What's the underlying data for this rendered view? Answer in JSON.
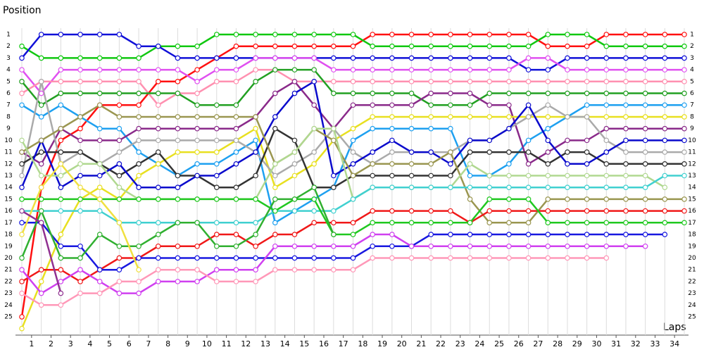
{
  "chart_data": {
    "type": "line",
    "title": "Position",
    "x_label": "Laps",
    "x": [
      0,
      1,
      2,
      3,
      4,
      5,
      6,
      7,
      8,
      9,
      10,
      11,
      12,
      13,
      14,
      15,
      16,
      17,
      18,
      19,
      20,
      21,
      22,
      23,
      24,
      25,
      26,
      27,
      28,
      29,
      30,
      31,
      32,
      33,
      34
    ],
    "xlim": [
      0,
      34
    ],
    "xticks": [
      {
        "value": 0.5,
        "label": "1"
      },
      {
        "value": 1.5,
        "label": "2"
      },
      {
        "value": 2.5,
        "label": "3"
      },
      {
        "value": 3.5,
        "label": "4"
      },
      {
        "value": 4.5,
        "label": "5"
      },
      {
        "value": 5.5,
        "label": "6"
      },
      {
        "value": 6.5,
        "label": "7"
      },
      {
        "value": 7.5,
        "label": "8"
      },
      {
        "value": 8.5,
        "label": "9"
      },
      {
        "value": 9.5,
        "label": "10"
      },
      {
        "value": 10.5,
        "label": "11"
      },
      {
        "value": 11.5,
        "label": "12"
      },
      {
        "value": 12.5,
        "label": "13"
      },
      {
        "value": 13.5,
        "label": "14"
      },
      {
        "value": 14.5,
        "label": "15"
      },
      {
        "value": 15.5,
        "label": "16"
      },
      {
        "value": 16.5,
        "label": "17"
      },
      {
        "value": 17.5,
        "label": "18"
      },
      {
        "value": 18.5,
        "label": "19"
      },
      {
        "value": 19.5,
        "label": "20"
      },
      {
        "value": 20.5,
        "label": "21"
      },
      {
        "value": 21.5,
        "label": "22"
      },
      {
        "value": 22.5,
        "label": "23"
      },
      {
        "value": 23.5,
        "label": "24"
      },
      {
        "value": 24.5,
        "label": "25"
      },
      {
        "value": 25.5,
        "label": "26"
      },
      {
        "value": 26.5,
        "label": "27"
      },
      {
        "value": 27.5,
        "label": "28"
      },
      {
        "value": 28.5,
        "label": "29"
      },
      {
        "value": 29.5,
        "label": "30"
      },
      {
        "value": 30.5,
        "label": "31"
      },
      {
        "value": 31.5,
        "label": "32"
      },
      {
        "value": 32.5,
        "label": "33"
      },
      {
        "value": 33.5,
        "label": "34"
      }
    ],
    "ylim": [
      26,
      0.5
    ],
    "yticks": [
      1,
      2,
      3,
      4,
      5,
      6,
      7,
      8,
      9,
      10,
      11,
      12,
      13,
      14,
      15,
      16,
      17,
      18,
      19,
      20,
      21,
      22,
      23,
      24,
      25
    ],
    "grid": true,
    "series": [
      {
        "color": "#ff1010",
        "values": [
          25,
          14,
          10,
          9,
          7,
          7,
          7,
          5,
          5,
          4,
          3,
          2,
          2,
          2,
          2,
          2,
          2,
          2,
          1,
          1,
          1,
          1,
          1,
          1,
          1,
          1,
          1,
          2,
          2,
          2,
          1,
          1,
          1,
          1,
          1
        ]
      },
      {
        "color": "#10c810",
        "values": [
          2,
          3,
          3,
          3,
          3,
          3,
          3,
          2,
          2,
          2,
          1,
          1,
          1,
          1,
          1,
          1,
          1,
          1,
          2,
          2,
          2,
          2,
          2,
          2,
          2,
          2,
          2,
          1,
          1,
          1,
          2,
          2,
          2,
          2,
          2
        ]
      },
      {
        "color": "#1010d8",
        "values": [
          3,
          1,
          1,
          1,
          1,
          1,
          2,
          2,
          3,
          3,
          3,
          3,
          3,
          3,
          3,
          3,
          3,
          3,
          3,
          3,
          3,
          3,
          3,
          3,
          3,
          3,
          4,
          4,
          3,
          3,
          3,
          3,
          3,
          3,
          3
        ]
      },
      {
        "color": "#e050f0",
        "values": [
          4,
          6,
          4,
          4,
          4,
          4,
          4,
          4,
          4,
          5,
          4,
          4,
          3,
          3,
          3,
          3,
          4,
          4,
          4,
          4,
          4,
          4,
          4,
          4,
          4,
          4,
          3,
          3,
          4,
          4,
          4,
          4,
          4,
          4,
          4
        ]
      },
      {
        "color": "#ff90b0",
        "values": [
          6,
          5,
          5,
          5,
          5,
          5,
          5,
          7,
          6,
          6,
          5,
          5,
          4,
          4,
          5,
          5,
          5,
          5,
          5,
          5,
          5,
          5,
          5,
          5,
          5,
          5,
          5,
          5,
          5,
          5,
          5,
          5,
          5,
          5,
          5
        ]
      },
      {
        "color": "#22a022",
        "values": [
          5,
          7,
          6,
          6,
          6,
          6,
          6,
          6,
          6,
          7,
          7,
          7,
          5,
          4,
          4,
          4,
          6,
          6,
          6,
          6,
          6,
          7,
          7,
          7,
          6,
          6,
          6,
          6,
          6,
          6,
          6,
          6,
          6,
          6,
          6
        ]
      },
      {
        "color": "#1ea0f0",
        "values": [
          7,
          8,
          7,
          8,
          9,
          9,
          11,
          12,
          13,
          12,
          12,
          11,
          10,
          17,
          16,
          15,
          14,
          10,
          9,
          9,
          9,
          9,
          9,
          13,
          13,
          12,
          10,
          9,
          8,
          7,
          7,
          7,
          7,
          7,
          7
        ]
      },
      {
        "color": "#8a2a8a",
        "values": [
          11,
          12,
          9,
          10,
          10,
          10,
          9,
          9,
          9,
          9,
          9,
          9,
          8,
          6,
          5,
          7,
          9,
          7,
          7,
          7,
          7,
          6,
          6,
          6,
          7,
          7,
          12,
          11,
          10,
          10,
          9,
          9,
          9,
          9,
          9
        ]
      },
      {
        "color": "#e8e020",
        "values": [
          26,
          22,
          18,
          15,
          14,
          15,
          13,
          12,
          11,
          11,
          11,
          10,
          9,
          14,
          13,
          12,
          10,
          9,
          8,
          8,
          8,
          8,
          8,
          8,
          8,
          8,
          8,
          8,
          8,
          8,
          8,
          8,
          8,
          8,
          8
        ]
      },
      {
        "color": "#aaaaaa",
        "values": [
          13,
          5,
          12,
          11,
          12,
          11,
          10,
          10,
          10,
          10,
          10,
          10,
          11,
          13,
          12,
          11,
          9,
          11,
          12,
          11,
          11,
          11,
          11,
          10,
          10,
          9,
          8,
          7,
          8,
          8,
          10,
          11,
          11,
          11,
          11
        ]
      },
      {
        "color": "#333333",
        "values": [
          12,
          11,
          11,
          11,
          12,
          13,
          12,
          11,
          13,
          13,
          14,
          14,
          13,
          9,
          10,
          14,
          14,
          13,
          13,
          13,
          13,
          13,
          13,
          11,
          11,
          11,
          11,
          12,
          11,
          11,
          12,
          12,
          12,
          12,
          12
        ]
      },
      {
        "color": "#0a0acc",
        "values": [
          14,
          10,
          14,
          13,
          13,
          12,
          14,
          14,
          14,
          13,
          13,
          12,
          11,
          8,
          6,
          5,
          13,
          12,
          11,
          10,
          11,
          11,
          12,
          10,
          10,
          9,
          7,
          10,
          12,
          12,
          11,
          10,
          10,
          10,
          10
        ]
      },
      {
        "color": "#9a9650",
        "values": [
          11,
          10,
          9,
          8,
          7,
          8,
          8,
          8,
          8,
          8,
          8,
          8,
          8,
          12,
          11,
          9,
          10,
          13,
          12,
          12,
          12,
          12,
          11,
          15,
          17,
          17,
          17,
          15,
          15,
          15,
          15,
          15,
          15,
          15,
          15
        ]
      },
      {
        "color": "#b0d890",
        "values": [
          10,
          13,
          13,
          12,
          12,
          14,
          15,
          15,
          15,
          15,
          15,
          15,
          15,
          12,
          11,
          9,
          9,
          15,
          14,
          14,
          14,
          14,
          14,
          12,
          13,
          13,
          13,
          13,
          13,
          13,
          13,
          13,
          13,
          14,
          null
        ]
      },
      {
        "color": "#40d0d0",
        "values": [
          16,
          16,
          16,
          16,
          16,
          17,
          17,
          17,
          17,
          17,
          17,
          17,
          17,
          16,
          16,
          16,
          16,
          15,
          14,
          14,
          14,
          14,
          14,
          14,
          14,
          14,
          14,
          14,
          14,
          14,
          14,
          14,
          14,
          13,
          13
        ]
      },
      {
        "color": "#f01818",
        "values": [
          22,
          21,
          21,
          22,
          21,
          20,
          20,
          19,
          19,
          19,
          18,
          18,
          19,
          18,
          18,
          17,
          17,
          17,
          16,
          16,
          16,
          16,
          16,
          17,
          16,
          16,
          16,
          16,
          16,
          16,
          16,
          16,
          16,
          16,
          16
        ]
      },
      {
        "color": "#20c820",
        "values": [
          15,
          15,
          15,
          15,
          15,
          15,
          15,
          15,
          15,
          15,
          15,
          15,
          15,
          16,
          15,
          15,
          18,
          18,
          17,
          17,
          17,
          17,
          17,
          17,
          15,
          15,
          15,
          17,
          17,
          17,
          17,
          17,
          17,
          17,
          17
        ]
      },
      {
        "color": "#1818e0",
        "values": [
          17,
          17,
          19,
          19,
          21,
          21,
          20,
          20,
          20,
          20,
          20,
          20,
          20,
          20,
          20,
          20,
          20,
          20,
          19,
          19,
          19,
          18,
          18,
          18,
          18,
          18,
          18,
          18,
          18,
          18,
          18,
          18,
          18,
          18,
          null
        ]
      },
      {
        "color": "#d040f0",
        "values": [
          21,
          23,
          22,
          21,
          22,
          23,
          23,
          22,
          22,
          22,
          21,
          21,
          21,
          19,
          19,
          19,
          19,
          19,
          18,
          18,
          19,
          19,
          19,
          19,
          19,
          19,
          19,
          19,
          19,
          19,
          19,
          19,
          19,
          null,
          null
        ]
      },
      {
        "color": "#ff98b8",
        "values": [
          23,
          24,
          24,
          23,
          23,
          22,
          22,
          21,
          21,
          21,
          22,
          22,
          22,
          21,
          21,
          21,
          21,
          21,
          20,
          20,
          20,
          20,
          20,
          20,
          20,
          20,
          20,
          20,
          20,
          20,
          20,
          null,
          null,
          null,
          null
        ]
      },
      {
        "color": "#30b030",
        "values": [
          20,
          16,
          20,
          20,
          18,
          19,
          19,
          18,
          17,
          17,
          19,
          19,
          18,
          15,
          15,
          14,
          18,
          null,
          null,
          null,
          null,
          null,
          null,
          null,
          null,
          null,
          null,
          null,
          null,
          null,
          null,
          null,
          null,
          null,
          null
        ]
      },
      {
        "color": "#f0e040",
        "values": [
          18,
          14,
          12,
          14,
          15,
          17,
          21,
          null,
          null,
          null,
          null,
          null,
          null,
          null,
          null,
          null,
          null,
          null,
          null,
          null,
          null,
          null,
          null,
          null,
          null,
          null,
          null,
          null,
          null,
          null,
          null,
          null,
          null,
          null,
          null
        ]
      },
      {
        "color": "#903090",
        "values": [
          16,
          17,
          23,
          null,
          null,
          null,
          null,
          null,
          null,
          null,
          null,
          null,
          null,
          null,
          null,
          null,
          null,
          null,
          null,
          null,
          null,
          null,
          null,
          null,
          null,
          null,
          null,
          null,
          null,
          null,
          null,
          null,
          null,
          null,
          null
        ]
      }
    ]
  }
}
